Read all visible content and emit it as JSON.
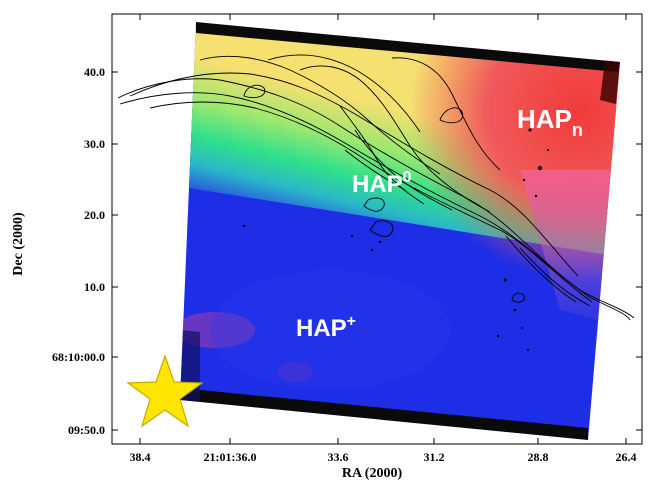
{
  "chart_data": {
    "type": "heatmap",
    "xlabel": "RA (2000)",
    "ylabel": "Dec (2000)",
    "x_ticks": [
      "38.4",
      "21:01:36.0",
      "33.6",
      "31.2",
      "28.8",
      "26.4"
    ],
    "y_ticks": [
      "40.0",
      "30.0",
      "20.0",
      "10.0",
      "68:10:00.0",
      "09:50.0"
    ],
    "regions": [
      {
        "base": "HAP",
        "sub": "n",
        "sup": ""
      },
      {
        "base": "HAP",
        "sub": "",
        "sup": "0"
      },
      {
        "base": "HAP",
        "sub": "",
        "sup": "+"
      }
    ],
    "colormap": {
      "red": "#f23a3a",
      "yellow": "#f5e070",
      "green": "#30e08a",
      "blue": "#1e2ee6",
      "purple": "#7a3ab8"
    },
    "overlay": "contours",
    "marker": "star",
    "marker_color": "#ffe600"
  }
}
